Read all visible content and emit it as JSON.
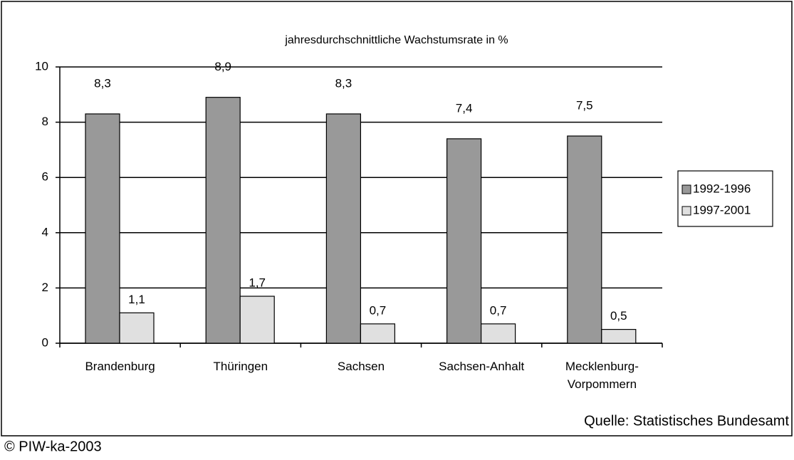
{
  "chart_data": {
    "type": "bar",
    "title": "jahresdurchschnittliche Wachstumsrate in %",
    "categories": [
      "Brandenburg",
      "Thüringen",
      "Sachsen",
      "Sachsen-Anhalt",
      "Mecklenburg-\nVorpommern"
    ],
    "series": [
      {
        "name": "1992-1996",
        "color": "#999999",
        "values": [
          8.3,
          8.9,
          8.3,
          7.4,
          7.5
        ],
        "value_labels": [
          "8,3",
          "8,9",
          "8,3",
          "7,4",
          "7,5"
        ]
      },
      {
        "name": "1997-2001",
        "color": "#e0e0e0",
        "values": [
          1.1,
          1.7,
          0.7,
          0.7,
          0.5
        ],
        "value_labels": [
          "1,1",
          "1,7",
          "0,7",
          "0,7",
          "0,5"
        ]
      }
    ],
    "ylim": [
      0,
      10
    ],
    "yticks": [
      0,
      2,
      4,
      6,
      8,
      10
    ],
    "grid": true,
    "legend": "right",
    "source": "Quelle: Statistisches Bundesamt",
    "copyright": "© PIW-ka-2003"
  }
}
